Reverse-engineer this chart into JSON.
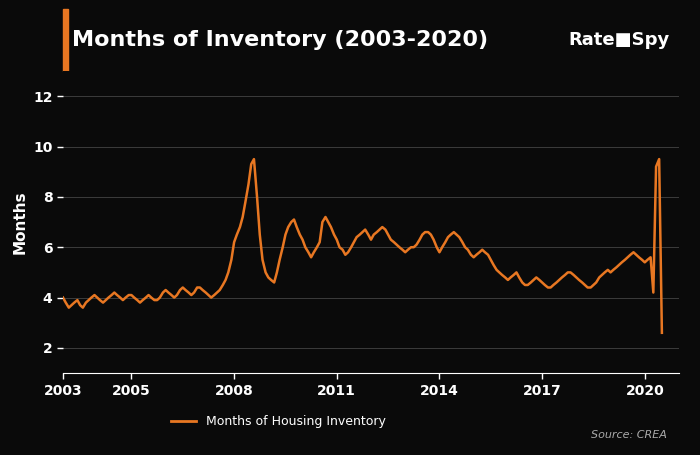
{
  "title": "Months of Inventory (2003-2020)",
  "ylabel": "Months",
  "legend_label": "Months of Housing Inventory",
  "source_text": "Source: CREA",
  "line_color": "#E87722",
  "background_color": "#0a0a0a",
  "plot_bg_color": "#0a0a0a",
  "header_bg_color": "#111111",
  "title_color": "#ffffff",
  "axis_color": "#ffffff",
  "grid_color": "#444444",
  "title_left_bar_color": "#E87722",
  "ylim": [
    1,
    13
  ],
  "yticks": [
    2,
    4,
    6,
    8,
    10,
    12
  ],
  "xticks": [
    2003,
    2005,
    2008,
    2011,
    2014,
    2017,
    2020
  ],
  "x": [
    2003.0,
    2003.08,
    2003.17,
    2003.25,
    2003.33,
    2003.42,
    2003.5,
    2003.58,
    2003.67,
    2003.75,
    2003.83,
    2003.92,
    2004.0,
    2004.08,
    2004.17,
    2004.25,
    2004.33,
    2004.42,
    2004.5,
    2004.58,
    2004.67,
    2004.75,
    2004.83,
    2004.92,
    2005.0,
    2005.08,
    2005.17,
    2005.25,
    2005.33,
    2005.42,
    2005.5,
    2005.58,
    2005.67,
    2005.75,
    2005.83,
    2005.92,
    2006.0,
    2006.08,
    2006.17,
    2006.25,
    2006.33,
    2006.42,
    2006.5,
    2006.58,
    2006.67,
    2006.75,
    2006.83,
    2006.92,
    2007.0,
    2007.08,
    2007.17,
    2007.25,
    2007.33,
    2007.42,
    2007.5,
    2007.58,
    2007.67,
    2007.75,
    2007.83,
    2007.92,
    2008.0,
    2008.08,
    2008.17,
    2008.25,
    2008.33,
    2008.42,
    2008.5,
    2008.58,
    2008.67,
    2008.75,
    2008.83,
    2008.92,
    2009.0,
    2009.08,
    2009.17,
    2009.25,
    2009.33,
    2009.42,
    2009.5,
    2009.58,
    2009.67,
    2009.75,
    2009.83,
    2009.92,
    2010.0,
    2010.08,
    2010.17,
    2010.25,
    2010.33,
    2010.42,
    2010.5,
    2010.58,
    2010.67,
    2010.75,
    2010.83,
    2010.92,
    2011.0,
    2011.08,
    2011.17,
    2011.25,
    2011.33,
    2011.42,
    2011.5,
    2011.58,
    2011.67,
    2011.75,
    2011.83,
    2011.92,
    2012.0,
    2012.08,
    2012.17,
    2012.25,
    2012.33,
    2012.42,
    2012.5,
    2012.58,
    2012.67,
    2012.75,
    2012.83,
    2012.92,
    2013.0,
    2013.08,
    2013.17,
    2013.25,
    2013.33,
    2013.42,
    2013.5,
    2013.58,
    2013.67,
    2013.75,
    2013.83,
    2013.92,
    2014.0,
    2014.08,
    2014.17,
    2014.25,
    2014.33,
    2014.42,
    2014.5,
    2014.58,
    2014.67,
    2014.75,
    2014.83,
    2014.92,
    2015.0,
    2015.08,
    2015.17,
    2015.25,
    2015.33,
    2015.42,
    2015.5,
    2015.58,
    2015.67,
    2015.75,
    2015.83,
    2015.92,
    2016.0,
    2016.08,
    2016.17,
    2016.25,
    2016.33,
    2016.42,
    2016.5,
    2016.58,
    2016.67,
    2016.75,
    2016.83,
    2016.92,
    2017.0,
    2017.08,
    2017.17,
    2017.25,
    2017.33,
    2017.42,
    2017.5,
    2017.58,
    2017.67,
    2017.75,
    2017.83,
    2017.92,
    2018.0,
    2018.08,
    2018.17,
    2018.25,
    2018.33,
    2018.42,
    2018.5,
    2018.58,
    2018.67,
    2018.75,
    2018.83,
    2018.92,
    2019.0,
    2019.08,
    2019.17,
    2019.25,
    2019.33,
    2019.42,
    2019.5,
    2019.58,
    2019.67,
    2019.75,
    2019.83,
    2019.92,
    2020.0,
    2020.08,
    2020.17,
    2020.25,
    2020.33,
    2020.42,
    2020.5
  ],
  "y": [
    4.0,
    3.8,
    3.6,
    3.7,
    3.8,
    3.9,
    3.7,
    3.6,
    3.8,
    3.9,
    4.0,
    4.1,
    4.0,
    3.9,
    3.8,
    3.9,
    4.0,
    4.1,
    4.2,
    4.1,
    4.0,
    3.9,
    4.0,
    4.1,
    4.1,
    4.0,
    3.9,
    3.8,
    3.9,
    4.0,
    4.1,
    4.0,
    3.9,
    3.9,
    4.0,
    4.2,
    4.3,
    4.2,
    4.1,
    4.0,
    4.1,
    4.3,
    4.4,
    4.3,
    4.2,
    4.1,
    4.2,
    4.4,
    4.4,
    4.3,
    4.2,
    4.1,
    4.0,
    4.1,
    4.2,
    4.3,
    4.5,
    4.7,
    5.0,
    5.5,
    6.2,
    6.5,
    6.8,
    7.2,
    7.8,
    8.5,
    9.3,
    9.5,
    8.0,
    6.5,
    5.5,
    5.0,
    4.8,
    4.7,
    4.6,
    5.0,
    5.5,
    6.0,
    6.5,
    6.8,
    7.0,
    7.1,
    6.8,
    6.5,
    6.3,
    6.0,
    5.8,
    5.6,
    5.8,
    6.0,
    6.2,
    7.0,
    7.2,
    7.0,
    6.8,
    6.5,
    6.3,
    6.0,
    5.9,
    5.7,
    5.8,
    6.0,
    6.2,
    6.4,
    6.5,
    6.6,
    6.7,
    6.5,
    6.3,
    6.5,
    6.6,
    6.7,
    6.8,
    6.7,
    6.5,
    6.3,
    6.2,
    6.1,
    6.0,
    5.9,
    5.8,
    5.9,
    6.0,
    6.0,
    6.1,
    6.3,
    6.5,
    6.6,
    6.6,
    6.5,
    6.3,
    6.0,
    5.8,
    6.0,
    6.2,
    6.4,
    6.5,
    6.6,
    6.5,
    6.4,
    6.2,
    6.0,
    5.9,
    5.7,
    5.6,
    5.7,
    5.8,
    5.9,
    5.8,
    5.7,
    5.5,
    5.3,
    5.1,
    5.0,
    4.9,
    4.8,
    4.7,
    4.8,
    4.9,
    5.0,
    4.8,
    4.6,
    4.5,
    4.5,
    4.6,
    4.7,
    4.8,
    4.7,
    4.6,
    4.5,
    4.4,
    4.4,
    4.5,
    4.6,
    4.7,
    4.8,
    4.9,
    5.0,
    5.0,
    4.9,
    4.8,
    4.7,
    4.6,
    4.5,
    4.4,
    4.4,
    4.5,
    4.6,
    4.8,
    4.9,
    5.0,
    5.1,
    5.0,
    5.1,
    5.2,
    5.3,
    5.4,
    5.5,
    5.6,
    5.7,
    5.8,
    5.7,
    5.6,
    5.5,
    5.4,
    5.5,
    5.6,
    4.2,
    9.2,
    9.5,
    2.6
  ]
}
